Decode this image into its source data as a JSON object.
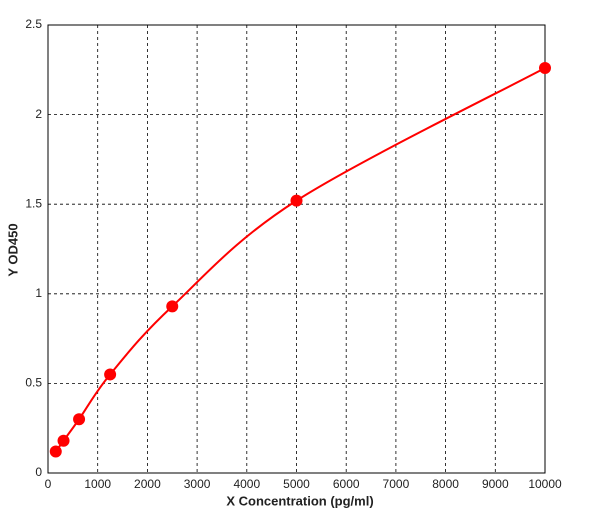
{
  "chart_data": {
    "type": "scatter",
    "x_label": "X  Concentration (pg/ml)",
    "y_label": "Y OD450",
    "x": [
      156.25,
      312.5,
      625,
      1250,
      2500,
      5000,
      10000
    ],
    "values": [
      0.12,
      0.18,
      0.3,
      0.55,
      0.93,
      1.52,
      2.26
    ],
    "color": "#ff0000",
    "fit_line": true,
    "xlim": [
      0,
      10000
    ],
    "xticks": [
      0,
      1000,
      2000,
      3000,
      4000,
      5000,
      6000,
      7000,
      8000,
      9000,
      10000
    ],
    "ylim": [
      0,
      2.5
    ],
    "yticks": [
      0,
      0.5,
      1,
      1.5,
      2,
      2.5
    ],
    "grid": true
  }
}
